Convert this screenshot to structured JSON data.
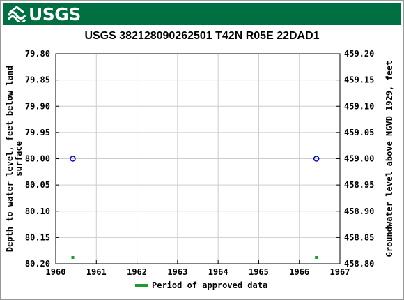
{
  "header": {
    "logo_text": "USGS",
    "bar_color": "#006f41"
  },
  "chart_data": {
    "type": "scatter",
    "title": "USGS 382128090262501 T42N R05E 22DAD1",
    "ylabel_left_line1": "Depth to water level, feet below land",
    "ylabel_left_line2": "surface",
    "ylabel_right": "Groundwater level above NGVD 1929, feet",
    "xlim": [
      1960,
      1967
    ],
    "ylim_left": [
      79.8,
      80.2
    ],
    "ylim_right": [
      459.2,
      458.8
    ],
    "x_ticks": [
      "1960",
      "1961",
      "1962",
      "1963",
      "1964",
      "1965",
      "1966",
      "1967"
    ],
    "y_ticks_left": [
      "79.80",
      "79.85",
      "79.90",
      "79.95",
      "80.00",
      "80.05",
      "80.10",
      "80.15",
      "80.20"
    ],
    "y_ticks_right": [
      "459.20",
      "459.15",
      "459.10",
      "459.05",
      "459.00",
      "458.95",
      "458.90",
      "458.85",
      "458.80"
    ],
    "grid": true,
    "series": [
      {
        "points": [
          {
            "x": 1960.42,
            "y": 80.0
          },
          {
            "x": 1966.42,
            "y": 80.0
          }
        ],
        "color": "#0000cc",
        "marker": "circle-open"
      }
    ],
    "approved_periods": [
      {
        "x": 1960.42
      },
      {
        "x": 1966.42
      }
    ],
    "approved_color": "#1a9c30",
    "legend": {
      "label": "Period of approved data",
      "position": "bottom-center"
    }
  }
}
